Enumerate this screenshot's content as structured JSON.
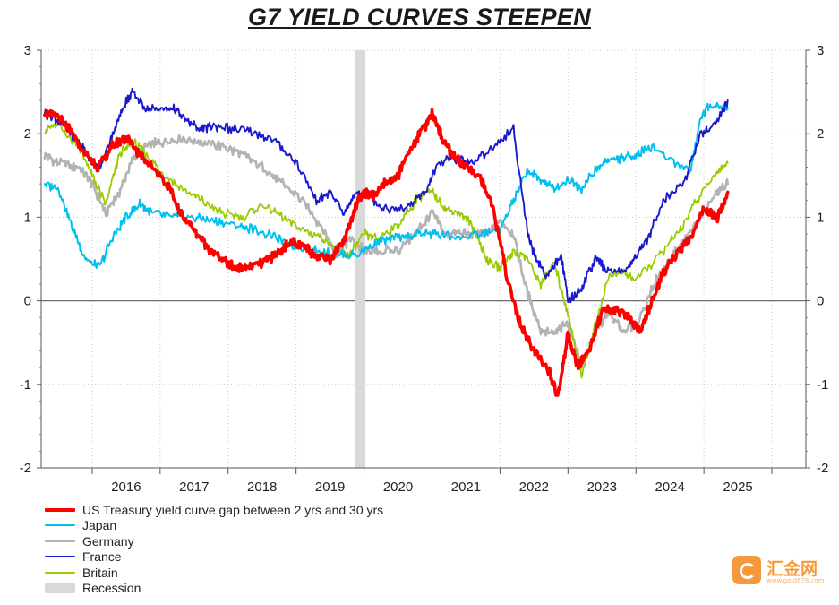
{
  "chart_data": {
    "type": "line",
    "title": "G7 YIELD CURVES STEEPEN",
    "xlabel": "",
    "ylabel": "",
    "x_range": [
      2015.25,
      2026.5
    ],
    "ylim": [
      -2,
      3
    ],
    "yticks": [
      -2,
      -1,
      0,
      1,
      2,
      3
    ],
    "year_labels": [
      "2016",
      "2017",
      "2018",
      "2019",
      "2020",
      "2021",
      "2022",
      "2023",
      "2024",
      "2025"
    ],
    "grid": true,
    "legend_position": "bottom-left",
    "recession": {
      "label": "Recession",
      "start": 2019.87,
      "end": 2020.02,
      "color": "#d9d9d9"
    },
    "series": [
      {
        "name": "Germany",
        "color": "#b3b3b3",
        "width": 2.6,
        "x": [
          2015.3,
          2015.5,
          2015.8,
          2016.0,
          2016.2,
          2016.4,
          2016.6,
          2016.8,
          2017.0,
          2017.3,
          2017.6,
          2017.9,
          2018.2,
          2018.5,
          2018.8,
          2019.1,
          2019.4,
          2019.6,
          2019.8,
          2020.0,
          2020.2,
          2020.5,
          2020.8,
          2021.0,
          2021.2,
          2021.4,
          2021.6,
          2021.8,
          2022.0,
          2022.2,
          2022.4,
          2022.6,
          2022.8,
          2023.0,
          2023.2,
          2023.4,
          2023.6,
          2023.8,
          2024.0,
          2024.3,
          2024.6,
          2024.9,
          2025.2,
          2025.35
        ],
        "y": [
          1.75,
          1.65,
          1.6,
          1.4,
          1.05,
          1.3,
          1.7,
          1.85,
          1.9,
          1.95,
          1.9,
          1.85,
          1.75,
          1.6,
          1.4,
          1.2,
          0.85,
          0.55,
          0.75,
          0.6,
          0.6,
          0.6,
          0.85,
          1.05,
          0.8,
          0.8,
          0.8,
          0.8,
          0.95,
          0.8,
          0.1,
          -0.35,
          -0.4,
          -0.25,
          -0.8,
          -0.35,
          -0.15,
          -0.35,
          -0.3,
          0.25,
          0.6,
          0.95,
          1.3,
          1.4
        ]
      },
      {
        "name": "Britain",
        "color": "#99cc00",
        "width": 1.8,
        "x": [
          2015.3,
          2015.5,
          2015.8,
          2016.0,
          2016.2,
          2016.4,
          2016.6,
          2016.8,
          2017.0,
          2017.3,
          2017.6,
          2017.9,
          2018.2,
          2018.5,
          2018.8,
          2019.1,
          2019.4,
          2019.6,
          2019.8,
          2020.0,
          2020.2,
          2020.5,
          2020.8,
          2021.0,
          2021.2,
          2021.4,
          2021.6,
          2021.8,
          2022.0,
          2022.2,
          2022.4,
          2022.6,
          2022.8,
          2023.0,
          2023.2,
          2023.4,
          2023.6,
          2023.8,
          2024.0,
          2024.3,
          2024.6,
          2024.9,
          2025.2,
          2025.35
        ],
        "y": [
          2.05,
          2.1,
          1.85,
          1.5,
          1.15,
          1.75,
          1.9,
          1.75,
          1.55,
          1.35,
          1.2,
          1.05,
          1.0,
          1.15,
          1.0,
          0.85,
          0.75,
          0.6,
          0.55,
          0.8,
          0.75,
          0.9,
          1.25,
          1.3,
          1.1,
          1.05,
          0.9,
          0.5,
          0.4,
          0.6,
          0.5,
          0.2,
          0.45,
          -0.15,
          -0.9,
          -0.3,
          0.3,
          0.35,
          0.25,
          0.5,
          0.8,
          1.2,
          1.55,
          1.65
        ]
      },
      {
        "name": "Japan",
        "color": "#00c0f0",
        "width": 2.0,
        "x": [
          2015.3,
          2015.5,
          2015.7,
          2015.9,
          2016.1,
          2016.3,
          2016.5,
          2016.7,
          2016.9,
          2017.2,
          2017.5,
          2017.8,
          2018.1,
          2018.4,
          2018.7,
          2019.0,
          2019.3,
          2019.6,
          2019.9,
          2020.2,
          2020.5,
          2020.8,
          2021.1,
          2021.4,
          2021.7,
          2022.0,
          2022.2,
          2022.4,
          2022.6,
          2022.8,
          2023.0,
          2023.2,
          2023.4,
          2023.6,
          2023.8,
          2024.0,
          2024.2,
          2024.5,
          2024.8,
          2024.95,
          2025.1,
          2025.35
        ],
        "y": [
          1.4,
          1.35,
          0.9,
          0.5,
          0.4,
          0.75,
          1.0,
          1.15,
          1.05,
          1.0,
          1.0,
          0.95,
          0.9,
          0.85,
          0.75,
          0.65,
          0.6,
          0.55,
          0.55,
          0.7,
          0.75,
          0.8,
          0.8,
          0.75,
          0.8,
          0.85,
          1.2,
          1.55,
          1.45,
          1.35,
          1.45,
          1.35,
          1.55,
          1.7,
          1.7,
          1.75,
          1.85,
          1.7,
          1.55,
          2.2,
          2.35,
          2.3
        ]
      },
      {
        "name": "France",
        "color": "#1a1acc",
        "width": 1.9,
        "x": [
          2015.3,
          2015.5,
          2015.7,
          2015.9,
          2016.1,
          2016.3,
          2016.5,
          2016.6,
          2016.8,
          2017.0,
          2017.2,
          2017.4,
          2017.6,
          2017.8,
          2018.1,
          2018.4,
          2018.7,
          2019.0,
          2019.3,
          2019.5,
          2019.7,
          2019.9,
          2020.1,
          2020.3,
          2020.6,
          2020.9,
          2021.1,
          2021.3,
          2021.6,
          2021.9,
          2022.2,
          2022.4,
          2022.5,
          2022.7,
          2022.9,
          2023.0,
          2023.2,
          2023.4,
          2023.6,
          2023.8,
          2024.0,
          2024.2,
          2024.4,
          2024.7,
          2024.95,
          2025.15,
          2025.35
        ],
        "y": [
          2.25,
          2.15,
          2.0,
          1.8,
          1.55,
          2.0,
          2.4,
          2.5,
          2.3,
          2.3,
          2.3,
          2.15,
          2.05,
          2.1,
          2.05,
          2.0,
          1.9,
          1.65,
          1.2,
          1.3,
          1.05,
          1.3,
          1.25,
          1.1,
          1.1,
          1.3,
          1.65,
          1.7,
          1.65,
          1.85,
          2.05,
          0.85,
          0.55,
          0.3,
          0.55,
          0.0,
          0.15,
          0.5,
          0.35,
          0.35,
          0.5,
          0.8,
          1.2,
          1.4,
          2.0,
          2.1,
          2.4
        ]
      },
      {
        "name": "US Treasury yield curve gap between 2 yrs and 30 yrs",
        "color": "#ff0000",
        "width": 3.6,
        "x": [
          2015.3,
          2015.5,
          2015.7,
          2015.9,
          2016.1,
          2016.3,
          2016.5,
          2016.7,
          2016.9,
          2017.1,
          2017.3,
          2017.5,
          2017.7,
          2017.9,
          2018.1,
          2018.3,
          2018.5,
          2018.7,
          2018.9,
          2019.1,
          2019.3,
          2019.5,
          2019.7,
          2019.9,
          2020.0,
          2020.15,
          2020.3,
          2020.5,
          2020.7,
          2020.9,
          2021.0,
          2021.15,
          2021.3,
          2021.5,
          2021.7,
          2021.9,
          2022.1,
          2022.3,
          2022.5,
          2022.7,
          2022.85,
          2023.0,
          2023.15,
          2023.3,
          2023.5,
          2023.7,
          2023.9,
          2024.05,
          2024.2,
          2024.4,
          2024.6,
          2024.8,
          2025.0,
          2025.2,
          2025.35
        ],
        "y": [
          2.25,
          2.2,
          2.0,
          1.75,
          1.6,
          1.85,
          1.95,
          1.75,
          1.6,
          1.4,
          1.05,
          0.85,
          0.65,
          0.5,
          0.4,
          0.4,
          0.45,
          0.55,
          0.7,
          0.65,
          0.55,
          0.5,
          0.7,
          1.2,
          1.3,
          1.25,
          1.4,
          1.5,
          1.85,
          2.1,
          2.25,
          1.95,
          1.75,
          1.6,
          1.5,
          1.1,
          0.3,
          -0.3,
          -0.6,
          -0.8,
          -1.15,
          -0.4,
          -0.8,
          -0.6,
          -0.15,
          -0.1,
          -0.2,
          -0.35,
          -0.1,
          0.35,
          0.55,
          0.75,
          1.1,
          1.0,
          1.3
        ]
      }
    ]
  }
}
